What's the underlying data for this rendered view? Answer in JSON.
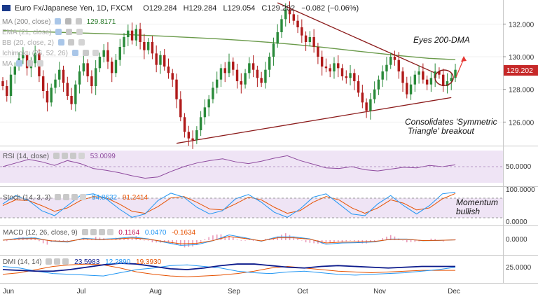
{
  "header": {
    "symbol": "Euro Fx/Japanese Yen, 1D, FXCM",
    "open": "O129.284",
    "high": "H129.284",
    "low": "L129.054",
    "close": "C129.202",
    "change": "−0.082 (−0.06%)"
  },
  "indicators": [
    {
      "label": "MA (200, close)",
      "value": "129.8171"
    },
    {
      "label": "EMA (21, close)",
      "value": ""
    },
    {
      "label": "BB (20, close, 2)",
      "value": ""
    },
    {
      "label": "Ichimoku (26, 52, 26)",
      "value": ""
    },
    {
      "label": "MA",
      "value": ""
    }
  ],
  "annotations": {
    "eyes": "Eyes 200-DMA",
    "consolidates_1": "Consolidates 'Symmetric",
    "consolidates_2": "Triangle' breakout",
    "momentum_1": "Momentum",
    "momentum_2": "bullish"
  },
  "panes": {
    "rsi": {
      "label": "RSI (14, close)",
      "v1": "53.0099"
    },
    "stoch": {
      "label": "Stoch (14, 3, 3)",
      "v1": "94.8632",
      "v2": "91.2414"
    },
    "macd": {
      "label": "MACD (12, 26, close, 9)",
      "v1": "0.1164",
      "v2": "0.0470",
      "v3": "-0.1634"
    },
    "dmi": {
      "label": "DMI (14, 14)",
      "v1": "23.5983",
      "v2": "12.2890",
      "v3": "19.3930"
    }
  },
  "colors": {
    "up": "#2a8a3a",
    "down": "#b01a1a",
    "ma200": "#6a9a4a",
    "trend": "#8b1a1a",
    "rsi": "#8e4a9e",
    "band": "#e8d8f0",
    "stochK": "#2196f3",
    "stochD": "#e65100",
    "price_tag": "#c62828"
  },
  "chart_data": {
    "type": "candlestick",
    "x_ticks": [
      "Jun",
      "Jul",
      "Aug",
      "Sep",
      "Oct",
      "Nov",
      "Dec"
    ],
    "price_axis": {
      "ticks": [
        "132.000",
        "130.000",
        "128.000",
        "126.000"
      ],
      "ylim": [
        124.6,
        133.3
      ]
    },
    "last_price": "129.202",
    "rsi_axis": {
      "ticks": [
        "50.0000"
      ]
    },
    "stoch_axis": {
      "ticks": [
        "100.0000",
        "0.0000"
      ]
    },
    "macd_axis": {
      "ticks": [
        "0.0000"
      ]
    },
    "dmi_axis": {
      "ticks": [
        "25.0000"
      ]
    },
    "closes": [
      128.2,
      127.6,
      128.9,
      129.4,
      129.9,
      130.1,
      129.3,
      129.6,
      130.2,
      128.8,
      127.9,
      127.2,
      128.1,
      128.6,
      129.2,
      128.4,
      127.6,
      127.1,
      128.3,
      129.1,
      129.6,
      128.8,
      128.2,
      129.3,
      130.0,
      130.4,
      129.7,
      129.0,
      129.8,
      130.6,
      131.2,
      131.6,
      131.0,
      131.7,
      130.9,
      130.4,
      130.9,
      130.2,
      129.5,
      130.1,
      129.4,
      129.0,
      128.6,
      127.4,
      126.3,
      125.4,
      125.0,
      124.9,
      125.5,
      126.3,
      126.9,
      127.4,
      128.1,
      128.6,
      129.3,
      129.0,
      129.7,
      129.2,
      128.5,
      128.3,
      129.0,
      129.6,
      129.2,
      128.7,
      128.4,
      129.2,
      130.0,
      130.8,
      131.5,
      132.3,
      132.9,
      132.6,
      132.2,
      131.8,
      131.3,
      130.9,
      131.2,
      130.6,
      130.0,
      129.4,
      129.3,
      129.1,
      129.6,
      129.3,
      128.8,
      128.7,
      129.0,
      128.5,
      127.8,
      127.2,
      126.7,
      127.4,
      128.0,
      128.6,
      129.1,
      129.5,
      130.0,
      129.8,
      129.1,
      128.4,
      127.7,
      128.3,
      128.9,
      129.1,
      128.6,
      128.3,
      128.7,
      129.1,
      128.9,
      128.2,
      128.5,
      128.7,
      129.2
    ],
    "ma200": [
      131.6,
      131.55,
      131.5,
      131.45,
      131.4,
      131.33,
      131.26,
      131.18,
      131.1,
      131.0,
      130.88,
      130.74,
      130.58,
      130.4,
      130.22,
      130.05,
      129.9,
      129.82
    ],
    "rsi": [
      50,
      56,
      62,
      58,
      52,
      60,
      55,
      47,
      44,
      40,
      35,
      31,
      33,
      42,
      50,
      56,
      60,
      63,
      58,
      55,
      59,
      64,
      68,
      60,
      54,
      48,
      47,
      50,
      45,
      43,
      46,
      49,
      48,
      52,
      50,
      53
    ],
    "stochK": [
      60,
      85,
      70,
      40,
      25,
      55,
      85,
      90,
      75,
      45,
      20,
      30,
      70,
      92,
      80,
      50,
      30,
      40,
      75,
      88,
      65,
      35,
      20,
      45,
      80,
      90,
      60,
      30,
      25,
      60,
      85,
      55,
      30,
      55,
      90,
      95
    ],
    "stochD": [
      55,
      72,
      70,
      55,
      38,
      48,
      70,
      82,
      78,
      60,
      38,
      32,
      52,
      78,
      82,
      65,
      45,
      42,
      60,
      80,
      72,
      50,
      32,
      40,
      65,
      82,
      72,
      48,
      32,
      48,
      72,
      62,
      42,
      48,
      75,
      91
    ],
    "dmi_adx": [
      20,
      19,
      18,
      18,
      20,
      23,
      26,
      28,
      27,
      24,
      21,
      20,
      22,
      25,
      27,
      27,
      25,
      23,
      22,
      24,
      25,
      24,
      23,
      22,
      23,
      24,
      24,
      24
    ],
    "dmi_plus": [
      24,
      22,
      18,
      15,
      14,
      13,
      12,
      16,
      20,
      22,
      25,
      26,
      24,
      22,
      18,
      16,
      15,
      17,
      18,
      16,
      14,
      13,
      14,
      15,
      16,
      18,
      20,
      23
    ],
    "dmi_minus": [
      14,
      16,
      20,
      24,
      26,
      27,
      26,
      22,
      17,
      14,
      12,
      11,
      12,
      13,
      15,
      18,
      22,
      24,
      22,
      20,
      18,
      17,
      16,
      17,
      18,
      19,
      19,
      19
    ]
  }
}
